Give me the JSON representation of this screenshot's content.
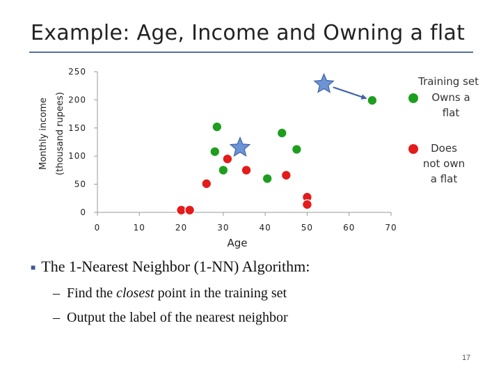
{
  "slide": {
    "title": "Example: Age, Income and Owning a flat",
    "bullet": "The 1-Nearest Neighbor (1-NN) Algorithm:",
    "sub_items": [
      {
        "before": "Find the ",
        "emph": "closest",
        "after": " point in the training set"
      },
      {
        "before": "Output the label of the nearest neighbor",
        "emph": "",
        "after": ""
      }
    ],
    "page_number": "17"
  },
  "chart_data": {
    "type": "scatter",
    "xlabel": "Age",
    "ylabel_line1": "Monthly income",
    "ylabel_line2": "(thousand rupees)",
    "xlim": [
      0,
      70
    ],
    "ylim": [
      0,
      250
    ],
    "xticks": [
      0,
      10,
      20,
      30,
      40,
      50,
      60,
      70
    ],
    "yticks": [
      0,
      50,
      100,
      150,
      200,
      250
    ],
    "grid": false,
    "legend": {
      "title": "Training set",
      "position": "right",
      "entries": [
        {
          "label_lines": [
            "Owns a",
            "flat"
          ],
          "color": "#1e9e1e"
        },
        {
          "label_lines": [
            "Does",
            "not own",
            "a flat"
          ],
          "color": "#e31b1b"
        }
      ]
    },
    "series": [
      {
        "name": "Owns a flat",
        "color": "#1e9e1e",
        "points": [
          [
            28.5,
            152
          ],
          [
            28,
            108
          ],
          [
            30,
            75
          ],
          [
            44,
            141
          ],
          [
            47.5,
            112
          ],
          [
            40.5,
            60
          ],
          [
            65.5,
            199
          ]
        ]
      },
      {
        "name": "Does not own a flat",
        "color": "#e31b1b",
        "points": [
          [
            20,
            4
          ],
          [
            22,
            4
          ],
          [
            26,
            51
          ],
          [
            31,
            95
          ],
          [
            35.5,
            75
          ],
          [
            45,
            66
          ],
          [
            50,
            27
          ],
          [
            50,
            14
          ]
        ]
      }
    ],
    "query_points": [
      {
        "color": "#6c93d6",
        "point": [
          54,
          228
        ]
      },
      {
        "color": "#6c93d6",
        "point": [
          34,
          115
        ]
      }
    ],
    "arrow": {
      "from": [
        54,
        228
      ],
      "to": [
        65.5,
        199
      ],
      "color": "#3f63a6"
    }
  }
}
